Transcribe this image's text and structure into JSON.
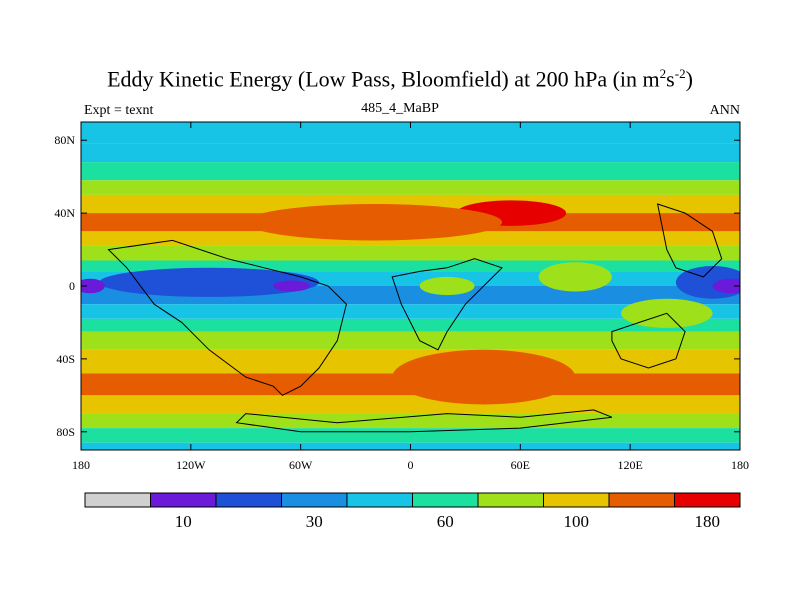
{
  "title": {
    "prefix": "Eddy Kinetic Energy (Low Pass, Bloomfield) at 200 hPa (in m",
    "sup1": "2",
    "mid": "s",
    "sup2": "-2",
    "suffix": ")"
  },
  "left_label": "Expt = texnt",
  "center_label": "485_4_MaBP",
  "right_label": "ANN",
  "chart_data": {
    "type": "heatmap",
    "projection": "cylindrical-equidistant",
    "xlim": [
      -180,
      180
    ],
    "ylim": [
      -90,
      90
    ],
    "x_ticks": [
      {
        "value": -180,
        "label": "180"
      },
      {
        "value": -120,
        "label": "120W"
      },
      {
        "value": -60,
        "label": "60W"
      },
      {
        "value": 0,
        "label": "0"
      },
      {
        "value": 60,
        "label": "60E"
      },
      {
        "value": 120,
        "label": "120E"
      },
      {
        "value": 180,
        "label": "180"
      }
    ],
    "y_ticks": [
      {
        "value": 80,
        "label": "80N"
      },
      {
        "value": 40,
        "label": "40N"
      },
      {
        "value": 0,
        "label": "0"
      },
      {
        "value": -40,
        "label": "40S"
      },
      {
        "value": -80,
        "label": "80S"
      }
    ],
    "colorbar": {
      "colors": [
        "#d0d0d0",
        "#6a1ad8",
        "#1f50d8",
        "#1a8ee0",
        "#18c4e6",
        "#1ce0a0",
        "#9ee01a",
        "#e6c400",
        "#e65c00",
        "#e60000"
      ],
      "labels": [
        {
          "index": 2,
          "text": "10"
        },
        {
          "index": 4,
          "text": "30"
        },
        {
          "index": 6,
          "text": "60"
        },
        {
          "index": 8,
          "text": "100"
        },
        {
          "index": 10,
          "text": "180"
        }
      ]
    },
    "bands": [
      {
        "lat": 90,
        "level": 4
      },
      {
        "lat": 78,
        "level": 4
      },
      {
        "lat": 68,
        "level": 5
      },
      {
        "lat": 58,
        "level": 6
      },
      {
        "lat": 50,
        "level": 7
      },
      {
        "lat": 40,
        "level": 8
      },
      {
        "lat": 30,
        "level": 7
      },
      {
        "lat": 22,
        "level": 6
      },
      {
        "lat": 14,
        "level": 5
      },
      {
        "lat": 8,
        "level": 4
      },
      {
        "lat": 0,
        "level": 3
      },
      {
        "lat": -10,
        "level": 4
      },
      {
        "lat": -18,
        "level": 5
      },
      {
        "lat": -25,
        "level": 6
      },
      {
        "lat": -35,
        "level": 7
      },
      {
        "lat": -48,
        "level": 8
      },
      {
        "lat": -60,
        "level": 7
      },
      {
        "lat": -70,
        "level": 6
      },
      {
        "lat": -78,
        "level": 5
      },
      {
        "lat": -86,
        "level": 4
      },
      {
        "lat": -90,
        "level": 4
      }
    ],
    "features": [
      {
        "kind": "ellipse",
        "lon": 55,
        "lat": 40,
        "rlon": 30,
        "rlat": 7,
        "level": 9
      },
      {
        "kind": "ellipse",
        "lon": -20,
        "lat": 35,
        "rlon": 70,
        "rlat": 10,
        "level": 8
      },
      {
        "kind": "ellipse",
        "lon": 40,
        "lat": -50,
        "rlon": 50,
        "rlat": 15,
        "level": 8
      },
      {
        "kind": "ellipse",
        "lon": -110,
        "lat": 2,
        "rlon": 60,
        "rlat": 8,
        "level": 2
      },
      {
        "kind": "ellipse",
        "lon": 165,
        "lat": 2,
        "rlon": 20,
        "rlat": 9,
        "level": 2
      },
      {
        "kind": "ellipse",
        "lon": -175,
        "lat": 0,
        "rlon": 8,
        "rlat": 4,
        "level": 1
      },
      {
        "kind": "ellipse",
        "lon": -65,
        "lat": 0,
        "rlon": 10,
        "rlat": 3,
        "level": 1
      },
      {
        "kind": "ellipse",
        "lon": 175,
        "lat": 0,
        "rlon": 10,
        "rlat": 4,
        "level": 1
      },
      {
        "kind": "ellipse",
        "lon": 90,
        "lat": 5,
        "rlon": 20,
        "rlat": 8,
        "level": 6
      },
      {
        "kind": "ellipse",
        "lon": 20,
        "lat": 0,
        "rlon": 15,
        "rlat": 5,
        "level": 6
      },
      {
        "kind": "ellipse",
        "lon": 140,
        "lat": -15,
        "rlon": 25,
        "rlat": 8,
        "level": 6
      }
    ]
  },
  "colors": {
    "frame": "#000000",
    "coastline": "#000000"
  }
}
